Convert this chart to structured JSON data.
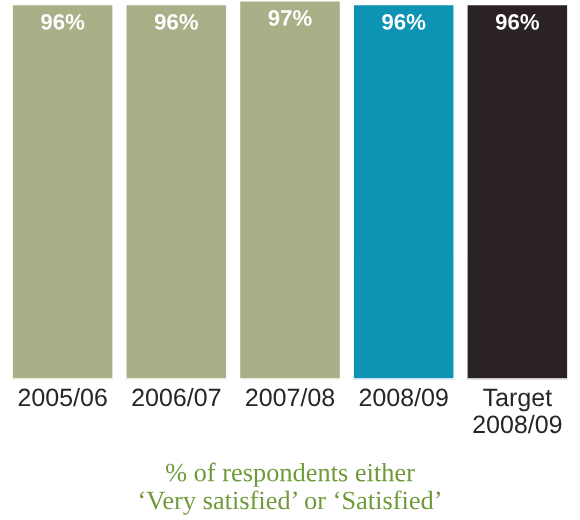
{
  "chart_data": {
    "type": "bar",
    "categories": [
      "2005/06",
      "2006/07",
      "2007/08",
      "2008/09",
      "Target\n2008/09"
    ],
    "values": [
      96,
      96,
      97,
      96,
      96
    ],
    "value_labels": [
      "96%",
      "96%",
      "97%",
      "96%",
      "96%"
    ],
    "colors": [
      "#a8b088",
      "#a8b088",
      "#a8b088",
      "#0d93b3",
      "#2b2323"
    ],
    "annotations": [
      "% of respondents either\n‘Very satisfied’ or ‘Satisfied’"
    ]
  }
}
